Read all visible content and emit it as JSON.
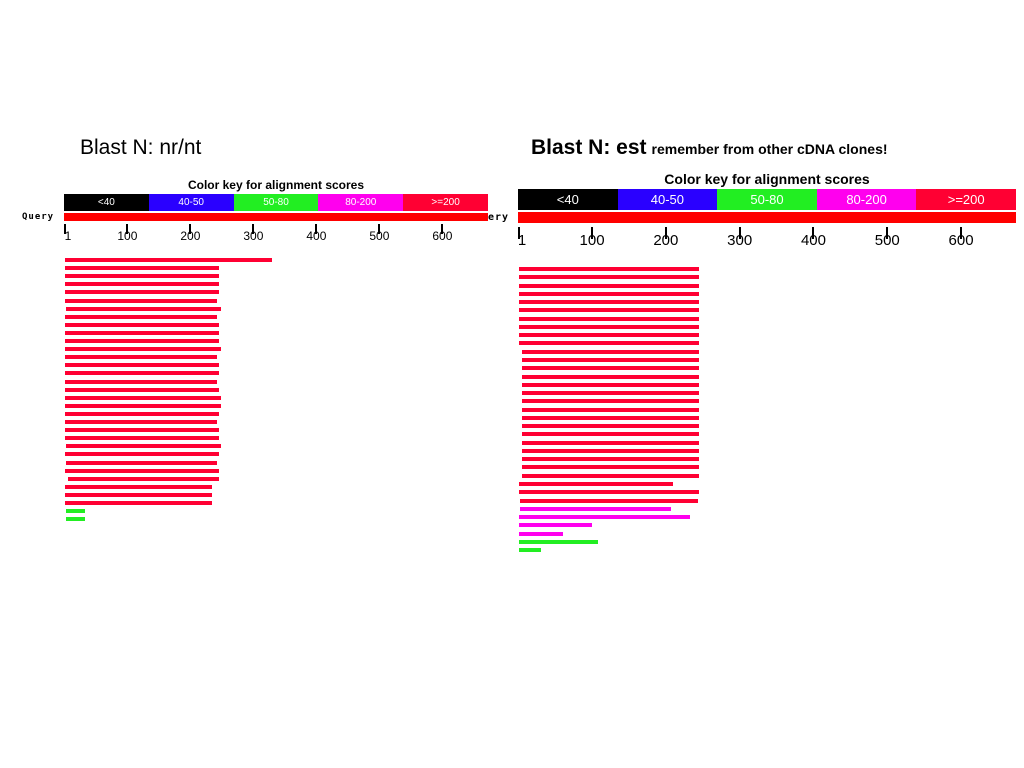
{
  "slide": {
    "left_title": "Blast N: nr/nt",
    "right_title_main": "Blast N: est",
    "right_title_sub": "remember from other cDNA clones!"
  },
  "colors": {
    "lt40": "#000000",
    "s40_50": "#2a00ff",
    "s50_80": "#22ee22",
    "s80_200": "#ff00ee",
    "ge200": "#ff0033"
  },
  "left": {
    "color_key_title": "Color key for alignment scores",
    "color_key": [
      {
        "label": "<40",
        "score": "lt40"
      },
      {
        "label": "40-50",
        "score": "s40_50"
      },
      {
        "label": "50-80",
        "score": "s50_80"
      },
      {
        "label": "80-200",
        "score": "s80_200"
      },
      {
        "label": ">=200",
        "score": "ge200"
      }
    ],
    "query_label": "Query",
    "ticks": [
      "1",
      "100",
      "200",
      "300",
      "400",
      "500",
      "600"
    ]
  },
  "right": {
    "color_key_title": "Color key for alignment scores",
    "color_key": [
      {
        "label": "<40",
        "score": "lt40"
      },
      {
        "label": "40-50",
        "score": "s40_50"
      },
      {
        "label": "50-80",
        "score": "s50_80"
      },
      {
        "label": "80-200",
        "score": "s80_200"
      },
      {
        "label": ">=200",
        "score": "ge200"
      }
    ],
    "query_label": "ery",
    "ticks": [
      "1",
      "100",
      "200",
      "300",
      "400",
      "500",
      "600"
    ]
  },
  "hits_left": [
    {
      "start": 1,
      "end": 330,
      "score": "ge200"
    },
    {
      "start": 1,
      "end": 245,
      "score": "ge200"
    },
    {
      "start": 1,
      "end": 245,
      "score": "ge200"
    },
    {
      "start": 1,
      "end": 245,
      "score": "ge200"
    },
    {
      "start": 1,
      "end": 245,
      "score": "ge200"
    },
    {
      "start": 1,
      "end": 243,
      "score": "ge200"
    },
    {
      "start": 3,
      "end": 248,
      "score": "ge200"
    },
    {
      "start": 1,
      "end": 243,
      "score": "ge200"
    },
    {
      "start": 1,
      "end": 245,
      "score": "ge200"
    },
    {
      "start": 1,
      "end": 245,
      "score": "ge200"
    },
    {
      "start": 1,
      "end": 245,
      "score": "ge200"
    },
    {
      "start": 1,
      "end": 248,
      "score": "ge200"
    },
    {
      "start": 1,
      "end": 243,
      "score": "ge200"
    },
    {
      "start": 1,
      "end": 245,
      "score": "ge200"
    },
    {
      "start": 1,
      "end": 245,
      "score": "ge200"
    },
    {
      "start": 1,
      "end": 243,
      "score": "ge200"
    },
    {
      "start": 1,
      "end": 245,
      "score": "ge200"
    },
    {
      "start": 1,
      "end": 248,
      "score": "ge200"
    },
    {
      "start": 1,
      "end": 248,
      "score": "ge200"
    },
    {
      "start": 1,
      "end": 245,
      "score": "ge200"
    },
    {
      "start": 1,
      "end": 243,
      "score": "ge200"
    },
    {
      "start": 1,
      "end": 245,
      "score": "ge200"
    },
    {
      "start": 1,
      "end": 245,
      "score": "ge200"
    },
    {
      "start": 3,
      "end": 248,
      "score": "ge200"
    },
    {
      "start": 1,
      "end": 245,
      "score": "ge200"
    },
    {
      "start": 3,
      "end": 243,
      "score": "ge200"
    },
    {
      "start": 1,
      "end": 245,
      "score": "ge200"
    },
    {
      "start": 6,
      "end": 245,
      "score": "ge200"
    },
    {
      "start": 1,
      "end": 235,
      "score": "ge200"
    },
    {
      "start": 1,
      "end": 235,
      "score": "ge200"
    },
    {
      "start": 1,
      "end": 235,
      "score": "ge200"
    },
    {
      "start": 3,
      "end": 32,
      "score": "s50_80"
    },
    {
      "start": 3,
      "end": 32,
      "score": "s50_80"
    }
  ],
  "hits_right": [
    {
      "start": 1,
      "end": 245,
      "score": "ge200"
    },
    {
      "start": 1,
      "end": 245,
      "score": "ge200"
    },
    {
      "start": 1,
      "end": 245,
      "score": "ge200"
    },
    {
      "start": 1,
      "end": 245,
      "score": "ge200"
    },
    {
      "start": 1,
      "end": 245,
      "score": "ge200"
    },
    {
      "start": 1,
      "end": 245,
      "score": "ge200"
    },
    {
      "start": 1,
      "end": 245,
      "score": "ge200"
    },
    {
      "start": 1,
      "end": 245,
      "score": "ge200"
    },
    {
      "start": 1,
      "end": 245,
      "score": "ge200"
    },
    {
      "start": 1,
      "end": 245,
      "score": "ge200"
    },
    {
      "start": 5,
      "end": 245,
      "score": "ge200"
    },
    {
      "start": 5,
      "end": 245,
      "score": "ge200"
    },
    {
      "start": 5,
      "end": 245,
      "score": "ge200"
    },
    {
      "start": 5,
      "end": 245,
      "score": "ge200"
    },
    {
      "start": 5,
      "end": 245,
      "score": "ge200"
    },
    {
      "start": 5,
      "end": 245,
      "score": "ge200"
    },
    {
      "start": 5,
      "end": 245,
      "score": "ge200"
    },
    {
      "start": 5,
      "end": 245,
      "score": "ge200"
    },
    {
      "start": 5,
      "end": 245,
      "score": "ge200"
    },
    {
      "start": 5,
      "end": 245,
      "score": "ge200"
    },
    {
      "start": 5,
      "end": 245,
      "score": "ge200"
    },
    {
      "start": 5,
      "end": 245,
      "score": "ge200"
    },
    {
      "start": 5,
      "end": 245,
      "score": "ge200"
    },
    {
      "start": 5,
      "end": 245,
      "score": "ge200"
    },
    {
      "start": 5,
      "end": 245,
      "score": "ge200"
    },
    {
      "start": 5,
      "end": 245,
      "score": "ge200"
    },
    {
      "start": 1,
      "end": 210,
      "score": "ge200"
    },
    {
      "start": 1,
      "end": 245,
      "score": "ge200"
    },
    {
      "start": 3,
      "end": 243,
      "score": "ge200"
    },
    {
      "start": 3,
      "end": 207,
      "score": "s80_200"
    },
    {
      "start": 1,
      "end": 233,
      "score": "s80_200"
    },
    {
      "start": 1,
      "end": 100,
      "score": "s80_200"
    },
    {
      "start": 1,
      "end": 61,
      "score": "s80_200"
    },
    {
      "start": 1,
      "end": 108,
      "score": "s50_80"
    },
    {
      "start": 1,
      "end": 31,
      "score": "s50_80"
    }
  ]
}
